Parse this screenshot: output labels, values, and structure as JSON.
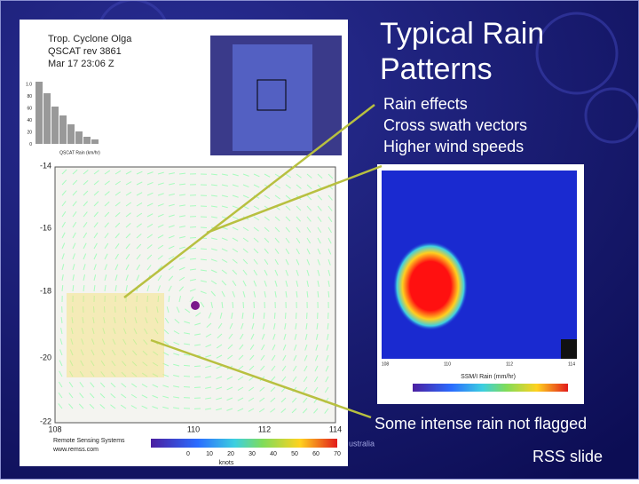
{
  "slide": {
    "title_lines": [
      "Typical Rain",
      "Patterns"
    ],
    "bullets": [
      "Rain effects",
      "Cross swath vectors",
      "Higher wind speeds"
    ],
    "caption": "Some intense rain not flagged",
    "footer_fragment": "ustralia",
    "credit": "RSS slide"
  },
  "wind_image": {
    "title_lines": [
      "Trop. Cyclone Olga",
      "QSCAT rev 3861",
      "Mar 17   23:06 Z"
    ],
    "lat_labels": [
      "-14",
      "-16",
      "-18",
      "-20",
      "-22"
    ],
    "lon_labels": [
      "108",
      "110",
      "112",
      "114"
    ],
    "histogram_labels": [
      "1.0",
      "80",
      "60",
      "40",
      "20",
      "0"
    ],
    "histogram_axis": "QSCAT Rain (km/hr)",
    "logo_lines": [
      "Remote Sensing Systems",
      "www.remss.com"
    ],
    "colorbar_labels": [
      "0",
      "10",
      "20",
      "30",
      "40",
      "50",
      "60",
      "70"
    ],
    "colorbar_unit": "knots"
  },
  "rain_image": {
    "colorbar_title": "SSM/I Rain (mm/hr)",
    "lon_labels": [
      "108",
      "110",
      "112",
      "114"
    ]
  }
}
